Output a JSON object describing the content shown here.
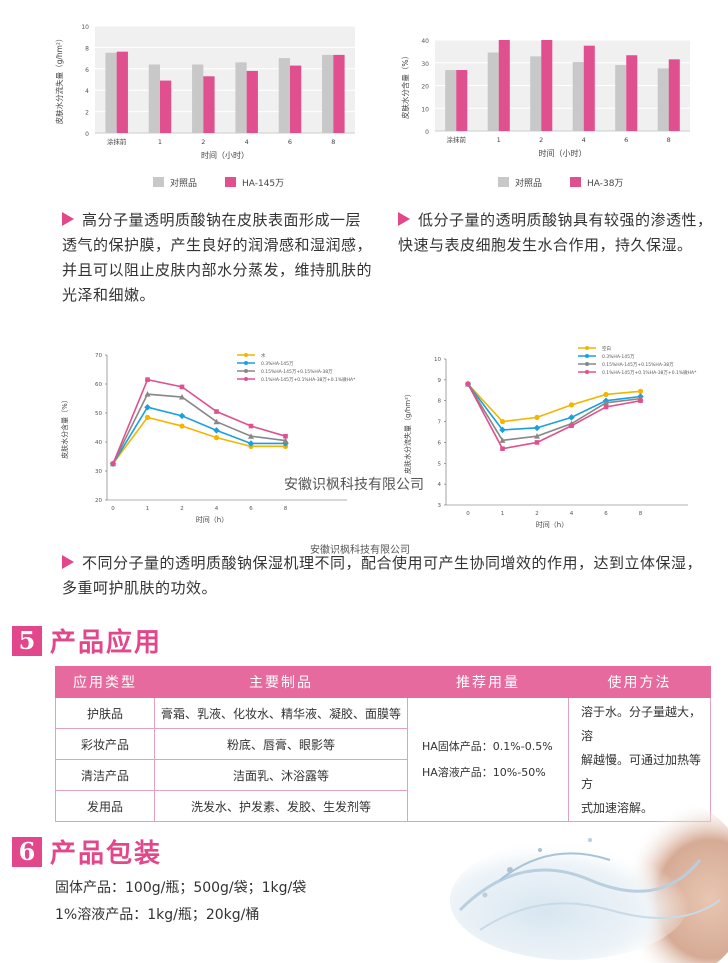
{
  "chart_data": [
    {
      "type": "bar",
      "categories": [
        "涂抹前",
        "1",
        "2",
        "4",
        "6",
        "8"
      ],
      "ylabel": "皮肤水分流失量（g/hm²）",
      "xlabel": "时间（小时）",
      "ylim": [
        0,
        10
      ],
      "yticks": [
        "0",
        "2",
        "4",
        "6",
        "8",
        "10"
      ],
      "series": [
        {
          "name": "对照品",
          "values": [
            7.5,
            6.4,
            6.4,
            6.6,
            7.0,
            7.3
          ],
          "color": "#c8c8c8"
        },
        {
          "name": "HA-145万",
          "values": [
            7.6,
            4.9,
            5.3,
            5.8,
            6.3,
            7.3
          ],
          "color": "#e0508e"
        }
      ]
    },
    {
      "type": "bar",
      "categories": [
        "涂抹前",
        "1",
        "2",
        "4",
        "6",
        "8"
      ],
      "ylabel": "皮肤水分含量（%）",
      "xlabel": "时间（小时）",
      "ylim": [
        0,
        40
      ],
      "yticks": [
        "0",
        "10",
        "20",
        "30",
        "40"
      ],
      "series": [
        {
          "name": "对照品",
          "values": [
            26.8,
            34.5,
            32.8,
            30.3,
            29.0,
            27.5
          ],
          "color": "#c8c8c8"
        },
        {
          "name": "HA-38万",
          "values": [
            26.8,
            40.0,
            40.0,
            37.5,
            33.3,
            31.5
          ],
          "color": "#e0508e"
        }
      ]
    },
    {
      "type": "line",
      "x": [
        "0",
        "1",
        "2",
        "4",
        "6",
        "8"
      ],
      "ylabel": "皮肤水分含量（%）",
      "xlabel": "时间（h）",
      "ylim": [
        20,
        70
      ],
      "yticks": [
        "20",
        "30",
        "40",
        "50",
        "60",
        "70"
      ],
      "series": [
        {
          "name": "水",
          "values": [
            32.5,
            48.5,
            45.5,
            41.5,
            38.5,
            38.5
          ],
          "color": "#f4b400"
        },
        {
          "name": "0.3%HA-145万",
          "values": [
            32.5,
            52,
            49,
            44,
            39.5,
            39.5
          ],
          "color": "#1aa0e0"
        },
        {
          "name": "0.15%HA-145万+0.15%HA-38万",
          "values": [
            32.5,
            56.5,
            55.5,
            47,
            42,
            40.5
          ],
          "color": "#888888"
        },
        {
          "name": "0.1%HA-145万+0.1%HA-38万+0.1%微HA*",
          "values": [
            32.5,
            61.5,
            59,
            50.5,
            45.5,
            42
          ],
          "color": "#e0508e"
        }
      ]
    },
    {
      "type": "line",
      "x": [
        "0",
        "1",
        "2",
        "4",
        "6",
        "8"
      ],
      "ylabel": "皮肤水分流失量（g/hm²）",
      "xlabel": "时间（h）",
      "ylim": [
        3,
        10
      ],
      "yticks": [
        "3",
        "4",
        "5",
        "6",
        "7",
        "8",
        "9",
        "10"
      ],
      "series": [
        {
          "name": "空白",
          "values": [
            8.8,
            7.0,
            7.2,
            7.8,
            8.3,
            8.45
          ],
          "color": "#f4b400"
        },
        {
          "name": "0.3%HA-145万",
          "values": [
            8.8,
            6.6,
            6.7,
            7.2,
            8.0,
            8.2
          ],
          "color": "#1aa0e0"
        },
        {
          "name": "0.15%HA-145万+0.15%HA-38万",
          "values": [
            8.8,
            6.1,
            6.3,
            6.9,
            7.9,
            8.1
          ],
          "color": "#888888"
        },
        {
          "name": "0.1%HA-145万+0.1%HA-38万+0.1%微HA*",
          "values": [
            8.8,
            5.7,
            6.0,
            6.8,
            7.7,
            8.0
          ],
          "color": "#e0508e"
        }
      ]
    }
  ],
  "paragraphs": {
    "left_1": "高分子量透明质酸钠在皮肤表面形成一层",
    "left_2": "透气的保护膜，产生良好的润滑感和湿润感，",
    "left_3": "并且可以阻止皮肤内部水分蒸发，维持肌肤的",
    "left_4": "光泽和细嫩。",
    "right_1": "低分子量的透明质酸钠具有较强的渗透性，",
    "right_2": "快速与表皮细胞发生水合作用，持久保湿。",
    "mid_1": "不同分子量的透明质酸钠保湿机理不同，配合使用可产生协同增效的作用，达到立体保湿，",
    "mid_2": "多重呵护肌肤的功效。"
  },
  "watermarks": [
    "安徽识枫科技有限公司",
    "安徽识枫科技有限公司"
  ],
  "section5": {
    "number": "5",
    "title": "产品应用"
  },
  "table": {
    "headers": [
      "应用类型",
      "主要制品",
      "推荐用量",
      "使用方法"
    ],
    "rows": [
      [
        "护肤品",
        "膏霜、乳液、化妆水、精华液、凝胶、面膜等"
      ],
      [
        "彩妆产品",
        "粉底、唇膏、眼影等"
      ],
      [
        "清洁产品",
        "洁面乳、沐浴露等"
      ],
      [
        "发用品",
        "洗发水、护发素、发胶、生发剂等"
      ]
    ],
    "dosage_1": "HA固体产品：0.1%-0.5%",
    "dosage_2": "HA溶液产品：10%-50%",
    "method_1": "溶于水。分子量越大，溶",
    "method_2": "解越慢。可通过加热等方",
    "method_3": "式加速溶解。"
  },
  "section6": {
    "number": "6",
    "title": "产品包装"
  },
  "packaging": {
    "solid": "固体产品：100g/瓶；500g/袋；1kg/袋",
    "liquid": "1%溶液产品：1kg/瓶；20kg/桶"
  }
}
